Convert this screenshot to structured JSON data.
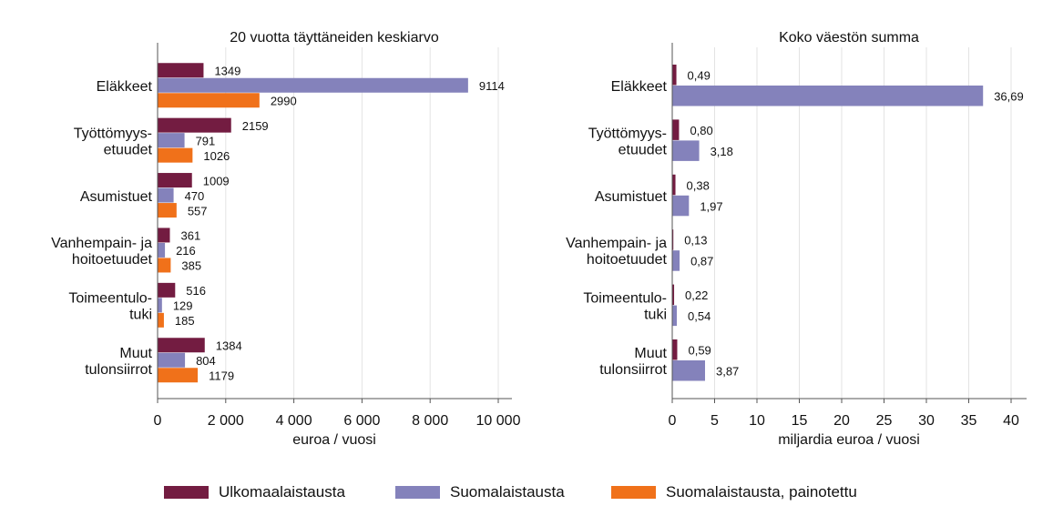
{
  "colors": {
    "ulkomaalaistausta": "#731c41",
    "suomalaistausta": "#8482bb",
    "painotettu": "#f0711a",
    "grid": "#e3e3e3",
    "axis": "#555555"
  },
  "legend": [
    {
      "label": "Ulkomaalaistausta",
      "color": "#731c41"
    },
    {
      "label": "Suomalaistausta",
      "color": "#8482bb"
    },
    {
      "label": "Suomalaistausta, painotettu",
      "color": "#f0711a"
    }
  ],
  "chart_data": [
    {
      "type": "bar",
      "orientation": "horizontal",
      "title": "20 vuotta täyttäneiden keskiarvo",
      "xlabel": "euroa / vuosi",
      "xlim": [
        0,
        10000
      ],
      "xticks": [
        0,
        2000,
        4000,
        6000,
        8000,
        10000
      ],
      "xtick_labels": [
        "0",
        "2 000",
        "4 000",
        "6 000",
        "8 000",
        "10 000"
      ],
      "grid": true,
      "categories": [
        [
          "Eläkkeet"
        ],
        [
          "Työttömyys-",
          "etuudet"
        ],
        [
          "Asumistuet"
        ],
        [
          "Vanhempain- ja",
          "hoitoetuudet"
        ],
        [
          "Toimeentulo-",
          "tuki"
        ],
        [
          "Muut",
          "tulonsiirrot"
        ]
      ],
      "series": [
        {
          "name": "Ulkomaalaistausta",
          "color": "#731c41",
          "values": [
            1349,
            2159,
            1009,
            361,
            516,
            1384
          ],
          "labels": [
            "1349",
            "2159",
            "1009",
            "361",
            "516",
            "1384"
          ]
        },
        {
          "name": "Suomalaistausta",
          "color": "#8482bb",
          "values": [
            9114,
            791,
            470,
            216,
            129,
            804
          ],
          "labels": [
            "9114",
            "791",
            "470",
            "216",
            "129",
            "804"
          ]
        },
        {
          "name": "Suomalaistausta, painotettu",
          "color": "#f0711a",
          "values": [
            2990,
            1026,
            557,
            385,
            185,
            1179
          ],
          "labels": [
            "2990",
            "1026",
            "557",
            "385",
            "185",
            "1179"
          ]
        }
      ]
    },
    {
      "type": "bar",
      "orientation": "horizontal",
      "title": "Koko väestön summa",
      "xlabel": "miljardia euroa / vuosi",
      "xlim": [
        0,
        40
      ],
      "xticks": [
        0,
        5,
        10,
        15,
        20,
        25,
        30,
        35,
        40
      ],
      "xtick_labels": [
        "0",
        "5",
        "10",
        "15",
        "20",
        "25",
        "30",
        "35",
        "40"
      ],
      "grid": true,
      "categories": [
        [
          "Eläkkeet"
        ],
        [
          "Työttömyys-",
          "etuudet"
        ],
        [
          "Asumistuet"
        ],
        [
          "Vanhempain- ja",
          "hoitoetuudet"
        ],
        [
          "Toimeentulo-",
          "tuki"
        ],
        [
          "Muut",
          "tulonsiirrot"
        ]
      ],
      "series": [
        {
          "name": "Ulkomaalaistausta",
          "color": "#731c41",
          "values": [
            0.49,
            0.8,
            0.38,
            0.13,
            0.22,
            0.59
          ],
          "labels": [
            "0,49",
            "0,80",
            "0,38",
            "0,13",
            "0,22",
            "0,59"
          ]
        },
        {
          "name": "Suomalaistausta",
          "color": "#8482bb",
          "values": [
            36.69,
            3.18,
            1.97,
            0.87,
            0.54,
            3.87
          ],
          "labels": [
            "36,69",
            "3,18",
            "1,97",
            "0,87",
            "0,54",
            "3,87"
          ]
        }
      ]
    }
  ]
}
